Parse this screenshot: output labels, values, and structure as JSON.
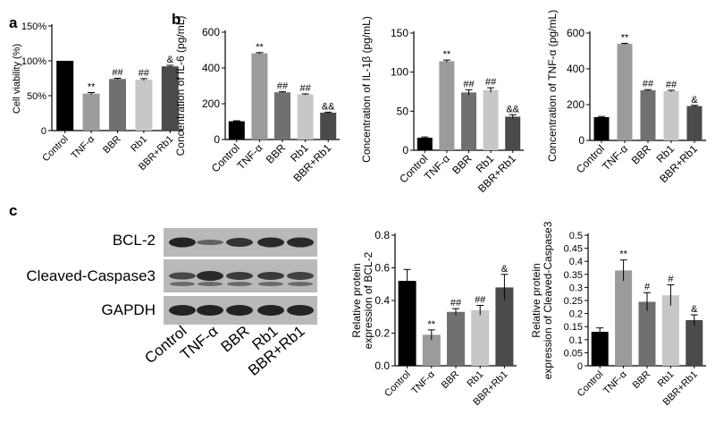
{
  "panel_labels": {
    "a": "a",
    "b": "b",
    "c": "c"
  },
  "western_blot": {
    "bands": [
      "BCL-2",
      "Cleaved-Caspase3",
      "GAPDH"
    ],
    "lanes": [
      "Control",
      "TNF-α",
      "BBR",
      "Rb1",
      "BBR+Rb1"
    ]
  },
  "chart_data": [
    {
      "id": "viability",
      "type": "bar",
      "title": "",
      "xlabel": "",
      "ylabel": "Cell viability (%)",
      "ylim": [
        0,
        150
      ],
      "yticks": [
        0,
        50,
        100,
        150
      ],
      "ytick_labels": [
        "0",
        "50%",
        "100%",
        "150%"
      ],
      "categories": [
        "Control",
        "TNF-α",
        "BBR",
        "Rb1",
        "BBR+Rb1"
      ],
      "values": [
        100,
        53,
        74,
        73,
        92
      ],
      "errors": [
        0,
        1.5,
        1,
        1.5,
        1.5
      ],
      "annotations": [
        "",
        "**",
        "##",
        "##",
        "&"
      ],
      "colors": [
        "#000000",
        "#9b9b9b",
        "#707070",
        "#c7c7c7",
        "#4a4a4a"
      ]
    },
    {
      "id": "il6",
      "type": "bar",
      "title": "",
      "xlabel": "",
      "ylabel": "Concentration of IL-6 (pg/mL)",
      "ylim": [
        0,
        600
      ],
      "yticks": [
        0,
        200,
        400,
        600
      ],
      "ytick_labels": [
        "0",
        "200",
        "400",
        "600"
      ],
      "categories": [
        "Control",
        "TNF-α",
        "BBR",
        "Rb1",
        "BBR+Rb1"
      ],
      "values": [
        102,
        482,
        264,
        252,
        150
      ],
      "errors": [
        3,
        4,
        3,
        3,
        3
      ],
      "annotations": [
        "",
        "**",
        "##",
        "##",
        "&&"
      ],
      "colors": [
        "#000000",
        "#9b9b9b",
        "#707070",
        "#c7c7c7",
        "#4a4a4a"
      ]
    },
    {
      "id": "il1b",
      "type": "bar",
      "title": "",
      "xlabel": "",
      "ylabel": "Concentration of IL-1β (pg/mL)",
      "ylim": [
        0,
        150
      ],
      "yticks": [
        0,
        50,
        100,
        150
      ],
      "ytick_labels": [
        "0",
        "50",
        "100",
        "150"
      ],
      "categories": [
        "Control",
        "TNF-α",
        "BBR",
        "Rb1",
        "BBR+Rb1"
      ],
      "values": [
        16,
        114,
        74,
        77,
        43
      ],
      "errors": [
        1,
        1.5,
        3.5,
        3,
        2.5
      ],
      "annotations": [
        "",
        "**",
        "##",
        "##",
        "&&"
      ],
      "colors": [
        "#000000",
        "#9b9b9b",
        "#707070",
        "#c7c7c7",
        "#4a4a4a"
      ]
    },
    {
      "id": "tnfa",
      "type": "bar",
      "title": "",
      "xlabel": "",
      "ylabel": "Concentration of TNF-α (pg/mL)",
      "ylim": [
        0,
        600
      ],
      "yticks": [
        0,
        200,
        400,
        600
      ],
      "ytick_labels": [
        "0",
        "200",
        "400",
        "600"
      ],
      "categories": [
        "Control",
        "TNF-α",
        "BBR",
        "Rb1",
        "BBR+Rb1"
      ],
      "values": [
        130,
        540,
        281,
        276,
        192
      ],
      "errors": [
        4,
        3,
        3,
        4,
        4
      ],
      "annotations": [
        "",
        "**",
        "##",
        "##",
        "&"
      ],
      "colors": [
        "#000000",
        "#9b9b9b",
        "#707070",
        "#c7c7c7",
        "#4a4a4a"
      ]
    },
    {
      "id": "bcl2",
      "type": "bar",
      "title": "",
      "xlabel": "",
      "ylabel": "Relative protein expression of BCL-2",
      "ylim": [
        0,
        0.8
      ],
      "yticks": [
        0,
        0.2,
        0.4,
        0.6,
        0.8
      ],
      "ytick_labels": [
        "0.0",
        "0.2",
        "0.4",
        "0.6",
        "0.8"
      ],
      "categories": [
        "Control",
        "TNF-α",
        "BBR",
        "Rb1",
        "BBR+Rb1"
      ],
      "values": [
        0.52,
        0.19,
        0.33,
        0.34,
        0.48
      ],
      "errors": [
        0.07,
        0.03,
        0.02,
        0.03,
        0.08
      ],
      "annotations": [
        "",
        "**",
        "##",
        "##",
        "&"
      ],
      "colors": [
        "#000000",
        "#9b9b9b",
        "#707070",
        "#c7c7c7",
        "#4a4a4a"
      ]
    },
    {
      "id": "casp3",
      "type": "bar",
      "title": "",
      "xlabel": "",
      "ylabel": "Relative protein expression of Cleaved-Caspase3",
      "ylim": [
        0,
        0.5
      ],
      "yticks": [
        0,
        0.05,
        0.1,
        0.15,
        0.2,
        0.25,
        0.3,
        0.35,
        0.4,
        0.45,
        0.5
      ],
      "ytick_labels": [
        "0",
        "0.05",
        "0.1",
        "0.15",
        "0.2",
        "0.25",
        "0.3",
        "0.35",
        "0.4",
        "0.45",
        "0.5"
      ],
      "categories": [
        "Control",
        "TNF-α",
        "BBR",
        "Rb1",
        "BBR+Rb1"
      ],
      "values": [
        0.13,
        0.365,
        0.245,
        0.27,
        0.175
      ],
      "errors": [
        0.015,
        0.04,
        0.035,
        0.04,
        0.02
      ],
      "annotations": [
        "",
        "**",
        "#",
        "#",
        "&"
      ],
      "colors": [
        "#000000",
        "#9b9b9b",
        "#707070",
        "#c7c7c7",
        "#4a4a4a"
      ]
    }
  ]
}
